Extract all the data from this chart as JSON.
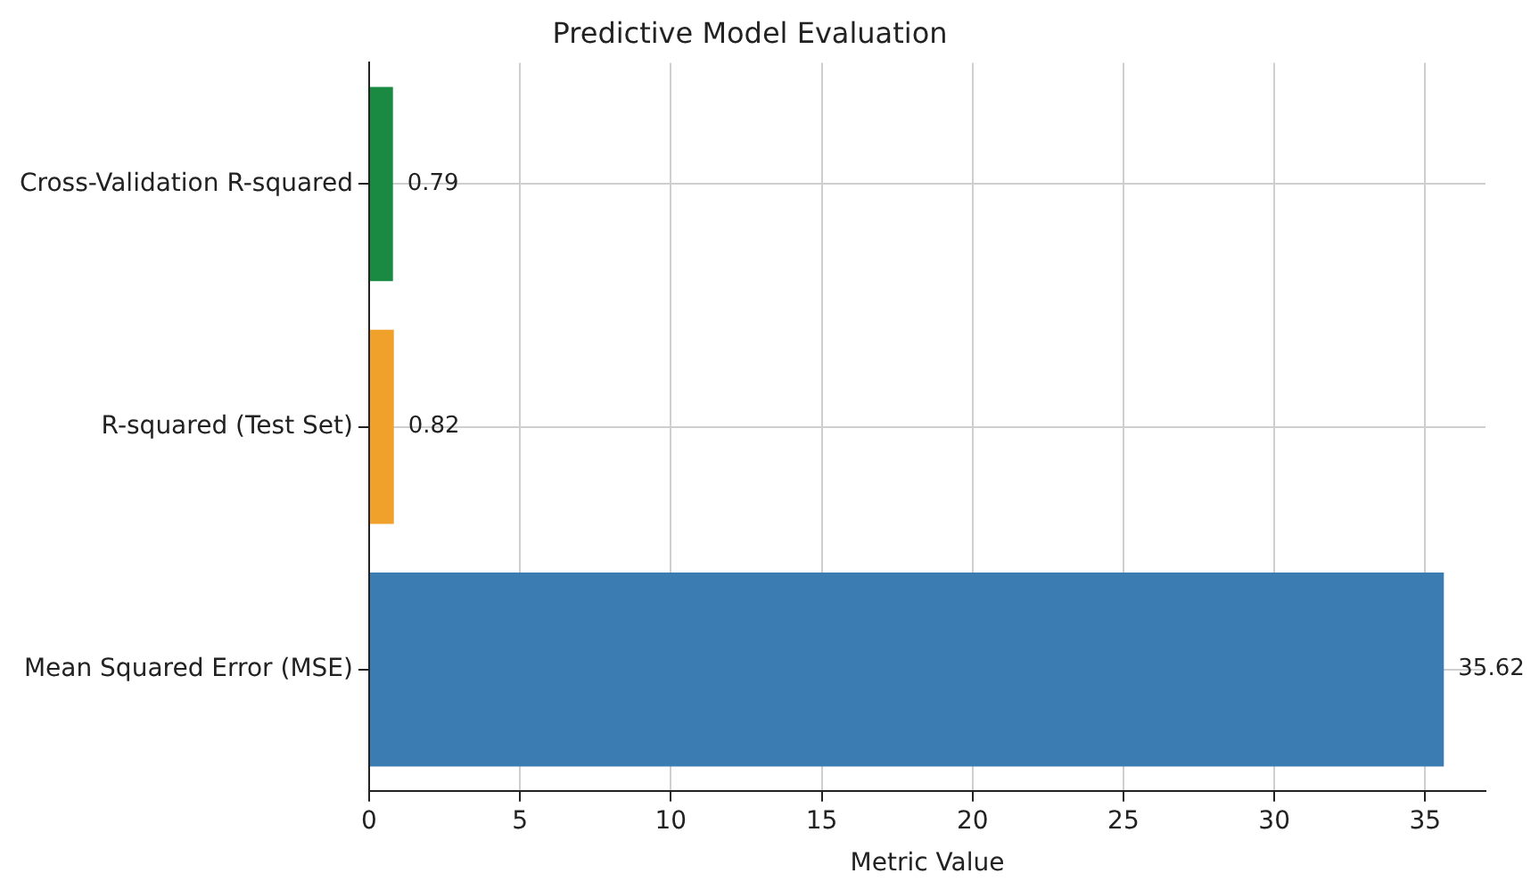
{
  "chart_data": {
    "type": "bar",
    "orientation": "horizontal",
    "title": "Predictive Model Evaluation",
    "xlabel": "Metric Value",
    "categories": [
      "Cross-Validation R-squared",
      "R-squared (Test Set)",
      "Mean Squared Error (MSE)"
    ],
    "values": [
      0.79,
      0.82,
      35.62
    ],
    "colors": [
      "#1a8a43",
      "#f0a12c",
      "#3b7db3"
    ],
    "xlim": [
      0,
      37
    ],
    "xticks": [
      0,
      5,
      10,
      15,
      20,
      25,
      30,
      35
    ],
    "grid": true,
    "data_labels": true
  }
}
